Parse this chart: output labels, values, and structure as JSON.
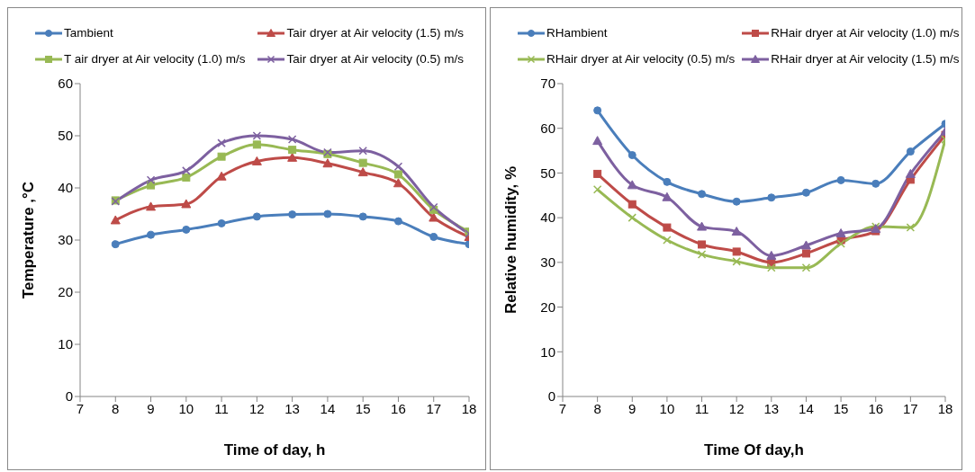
{
  "chart_data": [
    {
      "type": "line",
      "xlabel": "Time of day, h",
      "ylabel": "Temperature ,°C",
      "x": [
        8,
        9,
        10,
        11,
        12,
        13,
        14,
        15,
        16,
        17,
        18
      ],
      "xlim": [
        7,
        18
      ],
      "xticks": [
        7,
        8,
        9,
        10,
        11,
        12,
        13,
        14,
        15,
        16,
        17,
        18
      ],
      "ylim": [
        0,
        60
      ],
      "yticks": [
        0,
        10,
        20,
        30,
        40,
        50,
        60
      ],
      "grid": false,
      "legend": "top",
      "line_style": "solid",
      "series": [
        {
          "name": "Tambient",
          "color": "#4a7ebb",
          "marker": "circle",
          "values": [
            29.2,
            31,
            32,
            33.2,
            34.5,
            34.9,
            35,
            34.5,
            33.6,
            30.6,
            29.2
          ]
        },
        {
          "name": "Tair dryer at Air velocity (1.5) m/s",
          "color": "#be4b48",
          "marker": "triangle",
          "values": [
            33.8,
            36.4,
            36.9,
            42.2,
            45.1,
            45.8,
            44.7,
            43,
            40.9,
            34.3,
            30.6
          ]
        },
        {
          "name": "T air dryer at Air velocity (1.0) m/s",
          "color": "#98b954",
          "marker": "square",
          "values": [
            37.6,
            40.5,
            42,
            46,
            48.3,
            47.3,
            46.5,
            44.8,
            42.6,
            35.8,
            31.6
          ]
        },
        {
          "name": "Tair dryer at Air velocity (0.5) m/s",
          "color": "#7d60a0",
          "marker": "cross",
          "values": [
            37.4,
            41.5,
            43.3,
            48.6,
            50,
            49.3,
            46.8,
            47.1,
            44.1,
            36.3,
            31.2
          ]
        }
      ]
    },
    {
      "type": "line",
      "xlabel": "Time Of day,h",
      "ylabel": "Relative humidity, %",
      "x": [
        8,
        9,
        10,
        11,
        12,
        13,
        14,
        15,
        16,
        17,
        18
      ],
      "xlim": [
        7,
        18
      ],
      "xticks": [
        7,
        8,
        9,
        10,
        11,
        12,
        13,
        14,
        15,
        16,
        17,
        18
      ],
      "ylim": [
        0,
        70
      ],
      "yticks": [
        0,
        10,
        20,
        30,
        40,
        50,
        60,
        70
      ],
      "grid": false,
      "legend": "top",
      "line_style": "solid",
      "series": [
        {
          "name": "RHambient",
          "color": "#4a7ebb",
          "marker": "circle",
          "values": [
            64,
            54,
            48,
            45.3,
            43.6,
            44.5,
            45.6,
            48.4,
            47.6,
            54.8,
            61
          ]
        },
        {
          "name": "RHair dryer at Air velocity (1.0) m/s",
          "color": "#be4b48",
          "marker": "square",
          "values": [
            49.8,
            43,
            37.8,
            34,
            32.4,
            30,
            32,
            35,
            37,
            48.5,
            58.5
          ]
        },
        {
          "name": "RHair dryer at Air velocity (0.5) m/s",
          "color": "#98b954",
          "marker": "cross",
          "values": [
            46.3,
            40,
            35,
            31.8,
            30.2,
            28.8,
            28.8,
            34.2,
            38,
            37.8,
            57.5
          ]
        },
        {
          "name": "RHair dryer at Air velocity (1.5) m/s",
          "color": "#7d60a0",
          "marker": "triangle",
          "values": [
            57.2,
            47.3,
            44.6,
            38,
            36.9,
            31.5,
            33.8,
            36.5,
            37.5,
            49.8,
            59.3
          ]
        }
      ]
    }
  ]
}
